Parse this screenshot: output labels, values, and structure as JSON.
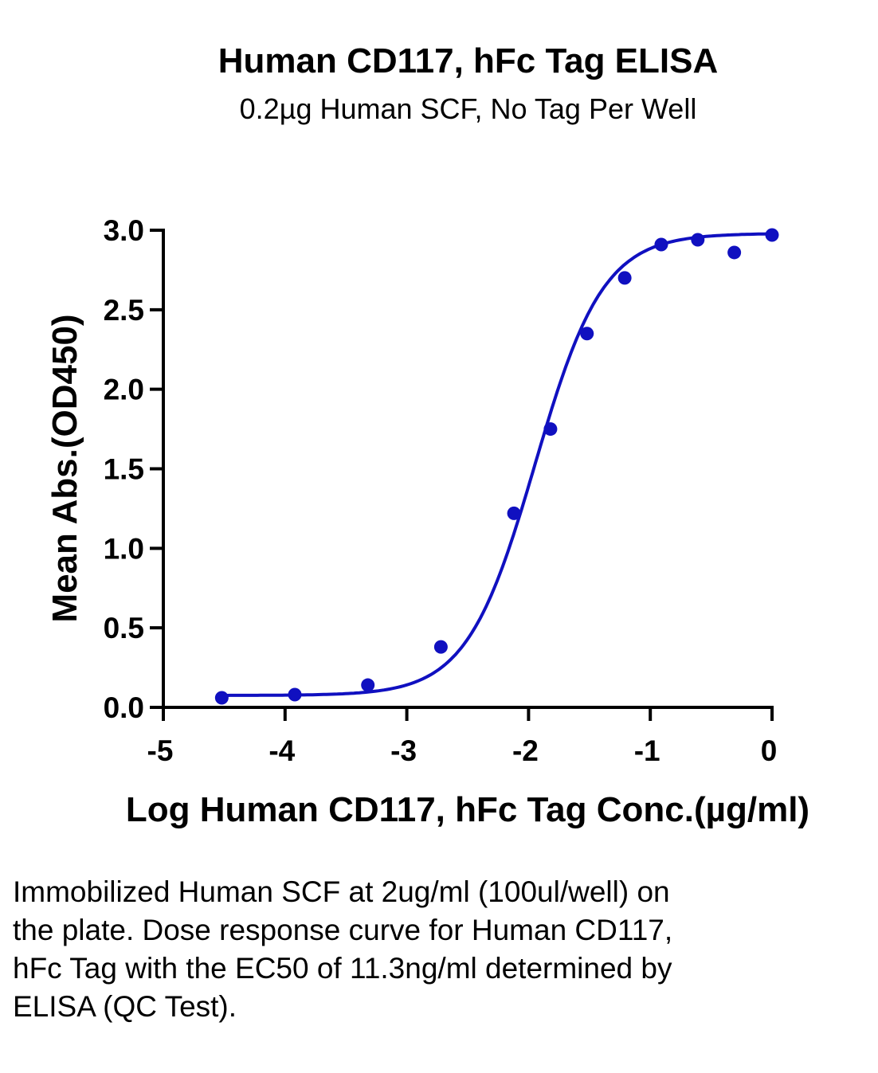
{
  "chart_data": {
    "type": "scatter",
    "title": "Human CD117, hFc Tag ELISA",
    "subtitle": "0.2µg Human SCF, No Tag Per Well",
    "xlabel": "Log Human CD117, hFc Tag Conc.(µg/ml)",
    "ylabel": "Mean Abs.(OD450)",
    "xlim": [
      -5,
      0
    ],
    "ylim": [
      0,
      3.0
    ],
    "xticks": [
      -5,
      -4,
      -3,
      -2,
      -1,
      0
    ],
    "yticks": [
      0.0,
      0.5,
      1.0,
      1.5,
      2.0,
      2.5,
      3.0
    ],
    "xtick_labels": [
      "-5",
      "-4",
      "-3",
      "-2",
      "-1",
      "0"
    ],
    "ytick_labels": [
      "0.0",
      "0.5",
      "1.0",
      "1.5",
      "2.0",
      "2.5",
      "3.0"
    ],
    "grid": false,
    "series": [
      {
        "color": "#1010c0",
        "points": [
          {
            "x": -4.52,
            "y": 0.06
          },
          {
            "x": -3.92,
            "y": 0.08
          },
          {
            "x": -3.32,
            "y": 0.14
          },
          {
            "x": -2.72,
            "y": 0.38
          },
          {
            "x": -2.12,
            "y": 1.22
          },
          {
            "x": -1.82,
            "y": 1.75
          },
          {
            "x": -1.52,
            "y": 2.35
          },
          {
            "x": -1.21,
            "y": 2.7
          },
          {
            "x": -0.91,
            "y": 2.91
          },
          {
            "x": -0.61,
            "y": 2.94
          },
          {
            "x": -0.31,
            "y": 2.86
          },
          {
            "x": 0.0,
            "y": 2.97
          }
        ],
        "fit": {
          "type": "4PL",
          "bottom": 0.075,
          "top": 2.98,
          "logEC50": -1.947,
          "hill": 1.55,
          "x_range": [
            -4.52,
            0.0
          ]
        }
      }
    ]
  },
  "caption": "Immobilized Human SCF at 2ug/ml (100ul/well) on the plate. Dose response curve for Human CD117, hFc Tag with the EC50 of 11.3ng/ml determined by ELISA (QC Test)."
}
